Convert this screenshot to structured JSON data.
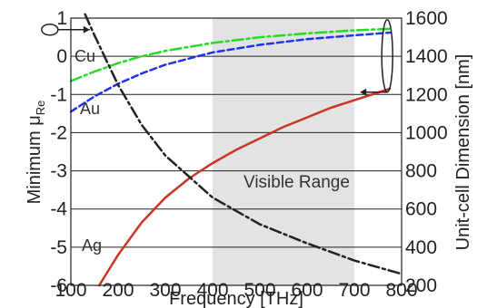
{
  "chart_data": {
    "type": "line",
    "xlabel": "Frequency [THz]",
    "ylabel_left": "Minimum μ",
    "ylabel_left_sub": "Re",
    "ylabel_right": "Unit-cell Dimension [nm]",
    "xlim": [
      100,
      800
    ],
    "ylim_left": [
      -6,
      1
    ],
    "ylim_right": [
      200,
      1600
    ],
    "x_ticks": [
      "100",
      "200",
      "300",
      "400",
      "500",
      "600",
      "700",
      "800"
    ],
    "y_left_ticks": [
      "-6",
      "-5",
      "-4",
      "-3",
      "-2",
      "-1",
      "0",
      "1"
    ],
    "y_right_ticks": [
      "200",
      "400",
      "600",
      "800",
      "1000",
      "1200",
      "1400",
      "1600"
    ],
    "grid": "horizontal",
    "shaded_region": {
      "label": "Visible Range",
      "x_range": [
        400,
        700
      ],
      "color": "#e3e3e3"
    },
    "series": [
      {
        "name": "Cu",
        "axis": "left",
        "style": "dash-dot",
        "color": "#22dd22",
        "x": [
          100,
          150,
          200,
          250,
          300,
          400,
          500,
          600,
          700,
          775
        ],
        "y": [
          -0.65,
          -0.4,
          -0.18,
          0.0,
          0.14,
          0.35,
          0.5,
          0.6,
          0.68,
          0.72
        ]
      },
      {
        "name": "Au",
        "axis": "left",
        "style": "dash",
        "color": "#2233ee",
        "x": [
          100,
          150,
          200,
          250,
          300,
          400,
          500,
          600,
          700,
          775
        ],
        "y": [
          -1.45,
          -1.05,
          -0.72,
          -0.45,
          -0.22,
          0.1,
          0.3,
          0.45,
          0.55,
          0.62
        ]
      },
      {
        "name": "Ag",
        "axis": "left",
        "style": "solid",
        "color": "#cc3322",
        "x": [
          160,
          200,
          250,
          300,
          350,
          400,
          450,
          500,
          550,
          600,
          650,
          700,
          775
        ],
        "y": [
          -6.0,
          -5.2,
          -4.35,
          -3.7,
          -3.2,
          -2.8,
          -2.45,
          -2.15,
          -1.85,
          -1.6,
          -1.35,
          -1.15,
          -0.85
        ]
      },
      {
        "name": "",
        "axis": "right",
        "style": "dash-dot",
        "color": "#222222",
        "x": [
          130,
          150,
          200,
          250,
          300,
          400,
          500,
          600,
          700,
          800
        ],
        "y": [
          1620,
          1510,
          1250,
          1040,
          880,
          660,
          520,
          420,
          330,
          260
        ]
      }
    ],
    "labels": {
      "cu": "Cu",
      "au": "Au",
      "ag": "Ag",
      "visible_range": "Visible Range"
    },
    "ellipse_annotations": [
      {
        "points_to": "right axis",
        "at": {
          "x": 140,
          "y": 0.72
        }
      },
      {
        "points_to": "left axis",
        "at": {
          "x": 760,
          "y": 0.2
        }
      }
    ]
  }
}
